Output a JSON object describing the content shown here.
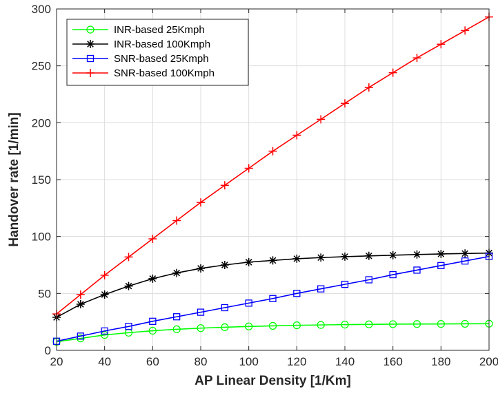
{
  "chart_data": {
    "type": "line",
    "title": "",
    "xlabel": "AP Linear Density [1/Km]",
    "ylabel": "Handover rate [1/min]",
    "xlim": [
      20,
      200
    ],
    "ylim": [
      0,
      300
    ],
    "xticks": [
      20,
      40,
      60,
      80,
      100,
      120,
      140,
      160,
      180,
      200
    ],
    "yticks": [
      0,
      50,
      100,
      150,
      200,
      250,
      300
    ],
    "grid": true,
    "legend_position": "top-left",
    "x": [
      20,
      30,
      40,
      50,
      60,
      70,
      80,
      90,
      100,
      110,
      120,
      130,
      140,
      150,
      160,
      170,
      180,
      190,
      200
    ],
    "series": [
      {
        "name": "INR-based 25Kmph",
        "color": "#00ff00",
        "marker": "circle",
        "values": [
          7.5,
          10.5,
          13.5,
          15.5,
          17.2,
          18.5,
          19.5,
          20.3,
          21,
          21.5,
          22,
          22.3,
          22.6,
          22.8,
          23,
          23.1,
          23.2,
          23.3,
          23.4
        ]
      },
      {
        "name": "INR-based 100Kmph",
        "color": "#000000",
        "marker": "asterisk",
        "values": [
          29,
          40.5,
          49,
          56.5,
          63,
          68,
          72,
          75,
          77.5,
          79,
          80.5,
          81.5,
          82.3,
          83,
          83.6,
          84.2,
          84.7,
          85.1,
          85.5
        ]
      },
      {
        "name": "SNR-based 25Kmph",
        "color": "#0000ff",
        "marker": "square",
        "values": [
          8,
          12.5,
          17,
          21,
          25.5,
          29.5,
          33.5,
          37.5,
          41.5,
          45.5,
          50,
          54,
          58,
          62,
          66.5,
          70.5,
          74.5,
          78.5,
          82.5
        ]
      },
      {
        "name": "SNR-based 100Kmph",
        "color": "#ff0000",
        "marker": "plus",
        "values": [
          32,
          49,
          66,
          82,
          98,
          114,
          130,
          145,
          160,
          175,
          189,
          203,
          217,
          231,
          244,
          257,
          269,
          281,
          293
        ]
      }
    ]
  }
}
